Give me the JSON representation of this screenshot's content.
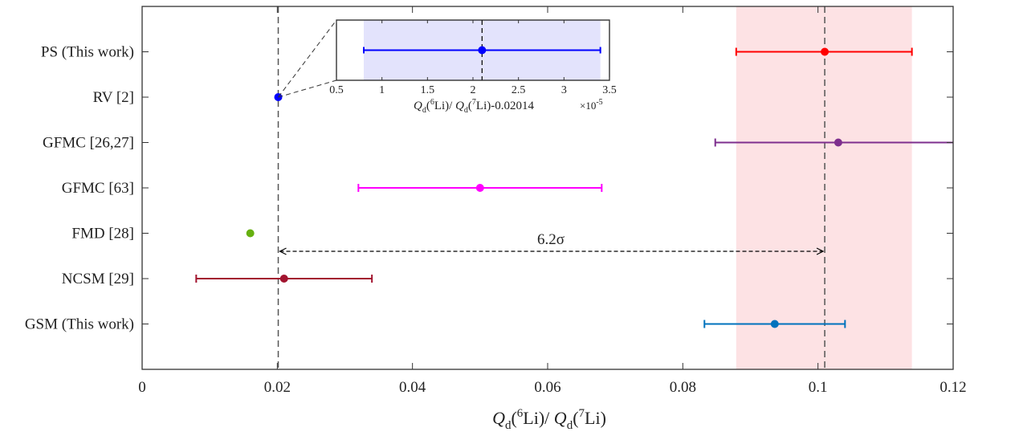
{
  "chart_data": {
    "type": "scatter",
    "xlabel": {
      "Q": "Q",
      "sub": "d",
      "open": "(",
      "sup1": "6",
      "mid": "Li)/ ",
      "Q2": "Q",
      "sub2": "d",
      "open2": "(",
      "sup2": "7",
      "end": "Li)"
    },
    "xlim": [
      0,
      0.12
    ],
    "xticks": [
      0,
      0.02,
      0.04,
      0.06,
      0.08,
      0.1,
      0.12
    ],
    "xtick_labels": [
      "0",
      "0.02",
      "0.04",
      "0.06",
      "0.08",
      "0.1",
      "0.12"
    ],
    "grid": false,
    "categories": [
      "PS (This work)",
      "RV [2]",
      "GFMC [26,27]",
      "GFMC [63]",
      "FMD [28]",
      "NCSM [29]",
      "GSM (This work)"
    ],
    "points": [
      {
        "label": "PS (This work)",
        "value": 0.101,
        "low": 0.0879,
        "high": 0.1139,
        "color": "#ff0000"
      },
      {
        "label": "RV [2]",
        "value": 0.02014,
        "low": null,
        "high": null,
        "color": "#0000ff"
      },
      {
        "label": "GFMC [26,27]",
        "value": 0.103,
        "low": 0.0848,
        "high": 0.1214,
        "color": "#7e2f8e"
      },
      {
        "label": "GFMC [63]",
        "value": 0.05,
        "low": 0.032,
        "high": 0.068,
        "color": "#ff00ff"
      },
      {
        "label": "FMD [28]",
        "value": 0.016,
        "low": null,
        "high": null,
        "color": "#66b010"
      },
      {
        "label": "NCSM [29]",
        "value": 0.021,
        "low": 0.008,
        "high": 0.034,
        "color": "#a2142f"
      },
      {
        "label": "GSM (This work)",
        "value": 0.0936,
        "low": 0.0832,
        "high": 0.104,
        "color": "#0072bd"
      }
    ],
    "band": {
      "low": 0.0879,
      "high": 0.1139,
      "color": "#fde2e4"
    },
    "ref_lines": [
      0.02014,
      0.101
    ],
    "annotation": {
      "text": "6.2σ",
      "from": 0.02014,
      "to": 0.101
    },
    "inset": {
      "xlim": [
        0.5,
        3.5
      ],
      "xticks": [
        0.5,
        1,
        1.5,
        2,
        2.5,
        3,
        3.5
      ],
      "xtick_labels": [
        "0.5",
        "1",
        "1.5",
        "2",
        "2.5",
        "3",
        "3.5"
      ],
      "xlabel": {
        "Q": "Q",
        "sub": "d",
        "open": "(",
        "sup1": "6",
        "mid": "Li)/ ",
        "Q2": "Q",
        "sub2": "d",
        "open2": "(",
        "sup2": "7",
        "end": "Li)-0.02014"
      },
      "multiplier": "×10",
      "multiplier_exp": "-5",
      "point": {
        "value": 2.1,
        "low": 0.8,
        "high": 3.4,
        "color": "#0000ff"
      },
      "band": {
        "low": 0.8,
        "high": 3.4,
        "color": "#e3e3fc"
      }
    }
  }
}
